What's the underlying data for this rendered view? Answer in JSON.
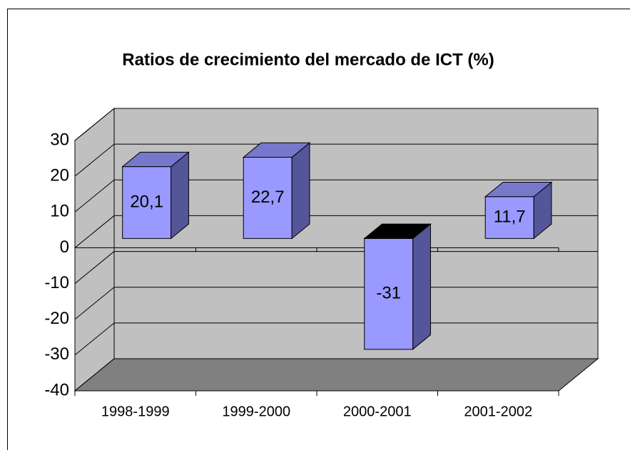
{
  "chart_data": {
    "type": "bar3d",
    "title": "Ratios de crecimiento del mercado de ICT (%)",
    "categories": [
      "1998-1999",
      "1999-2000",
      "2000-2001",
      "2001-2002"
    ],
    "values": [
      20.1,
      22.7,
      -31,
      11.7
    ],
    "value_labels": [
      "20,1",
      "22,7",
      "-31",
      "11,7"
    ],
    "color": "#9999ff",
    "ylim": [
      -40,
      30
    ],
    "yticks": [
      -40,
      -30,
      -20,
      -10,
      0,
      10,
      20,
      30
    ],
    "grid": true
  }
}
